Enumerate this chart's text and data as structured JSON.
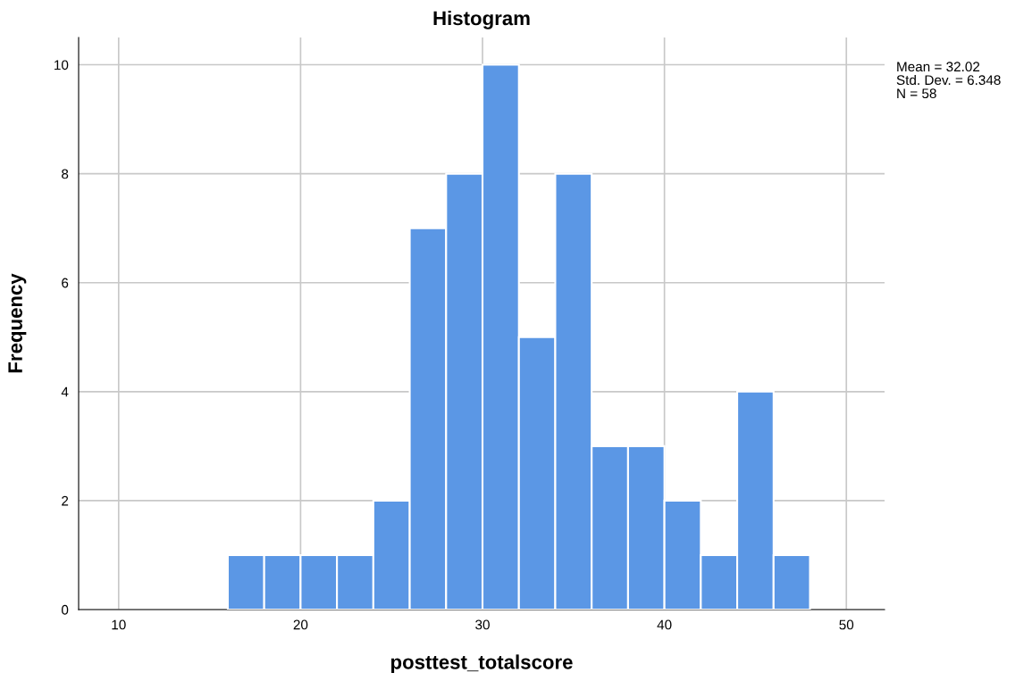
{
  "chart_data": {
    "type": "histogram",
    "title": "Histogram",
    "xlabel": "posttest_totalscore",
    "ylabel": "Frequency",
    "bins": [
      16,
      18,
      20,
      22,
      24,
      26,
      28,
      30,
      32,
      34,
      36,
      38,
      40,
      42,
      44,
      46,
      48
    ],
    "values": [
      1,
      1,
      1,
      1,
      2,
      7,
      8,
      10,
      5,
      8,
      3,
      3,
      2,
      1,
      4,
      1
    ],
    "color": "#5b97e5",
    "xlim": [
      7.8,
      52.1
    ],
    "xticks": [
      10,
      20,
      30,
      40,
      50
    ],
    "ylim": [
      0,
      10.5
    ],
    "yticks": [
      0,
      2,
      4,
      6,
      8,
      10
    ],
    "grid": true,
    "annotations": [
      "Mean = 32.02",
      "Std. Dev. = 6.348",
      "N = 58"
    ]
  }
}
